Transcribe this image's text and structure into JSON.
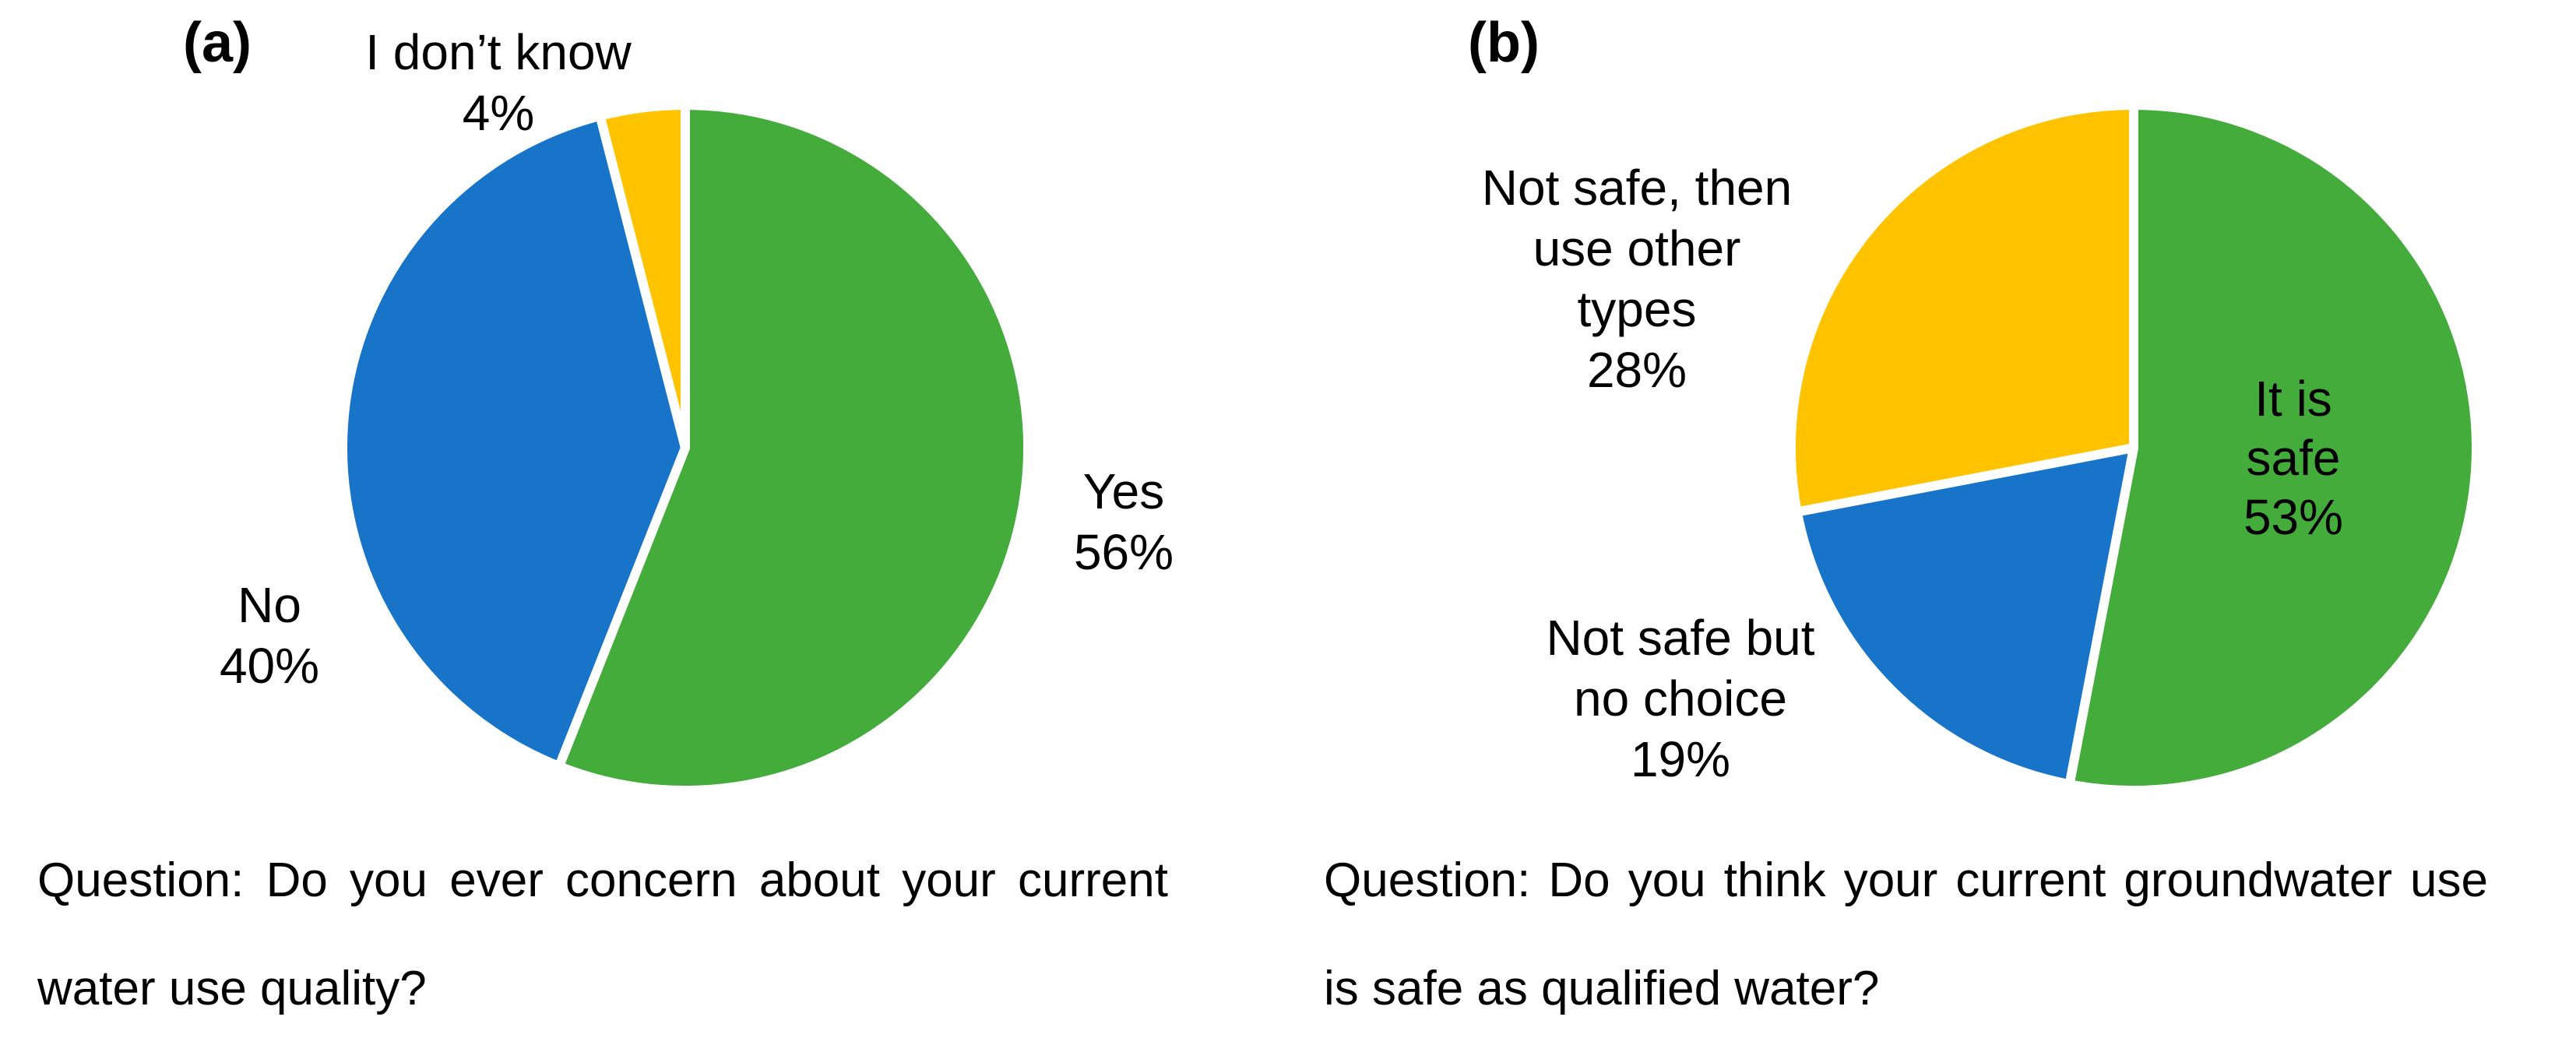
{
  "figure_type": "two-panel pie chart figure",
  "slice_style": {
    "stroke": "#FFFFFF",
    "stroke_width": 12
  },
  "palette": {
    "green": "#43AC3B",
    "blue": "#1774C8",
    "yellow": "#FFC300"
  },
  "chart_data": [
    {
      "panel": "a",
      "panel_label": "(a)",
      "type": "pie",
      "direction": "clockwise",
      "start_angle_deg": 0,
      "legend_position": "outside-labels",
      "slices": [
        {
          "label": "Yes",
          "pct": 56,
          "color": "#43AC3B",
          "label_lines": [
            "Yes",
            "56%"
          ]
        },
        {
          "label": "No",
          "pct": 40,
          "color": "#1774C8",
          "label_lines": [
            "No",
            "40%"
          ]
        },
        {
          "label": "I don’t know",
          "pct": 4,
          "color": "#FFC300",
          "label_lines": [
            "I don’t know",
            "4%"
          ]
        }
      ],
      "question_lines": [
        "Question: Do you ever concern about your current",
        "water use quality?"
      ]
    },
    {
      "panel": "b",
      "panel_label": "(b)",
      "type": "pie",
      "direction": "clockwise",
      "start_angle_deg": 0,
      "legend_position": "outside-labels",
      "slices": [
        {
          "label": "It is safe",
          "pct": 53,
          "color": "#43AC3B",
          "label_lines": [
            "It is",
            "safe",
            "53%"
          ]
        },
        {
          "label": "Not safe but no choice",
          "pct": 19,
          "color": "#1774C8",
          "label_lines": [
            "Not safe but",
            "no choice",
            "19%"
          ]
        },
        {
          "label": "Not safe, then use other types",
          "pct": 28,
          "color": "#FFC300",
          "label_lines": [
            "Not safe, then",
            "use other",
            "types",
            "28%"
          ]
        }
      ],
      "question_lines": [
        "Question: Do you think your current groundwater use",
        "is safe as qualified water?"
      ]
    }
  ]
}
